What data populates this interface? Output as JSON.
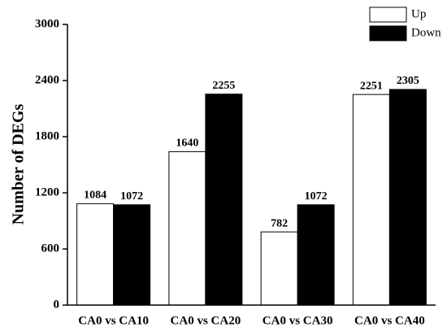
{
  "chart_data": {
    "type": "bar",
    "ylabel": "Number of DEGs",
    "categories": [
      "CA0 vs CA10",
      "CA0 vs CA20",
      "CA0 vs CA30",
      "CA0 vs CA40"
    ],
    "series": [
      {
        "name": "Up",
        "color": "#ffffff",
        "values": [
          1084,
          1640,
          782,
          2251
        ]
      },
      {
        "name": "Down",
        "color": "#000000",
        "values": [
          1072,
          2255,
          1072,
          2305
        ]
      }
    ],
    "ylim": [
      0,
      3000
    ],
    "yticks": [
      0,
      600,
      1200,
      1800,
      2400,
      3000
    ],
    "legend": "upper right"
  }
}
